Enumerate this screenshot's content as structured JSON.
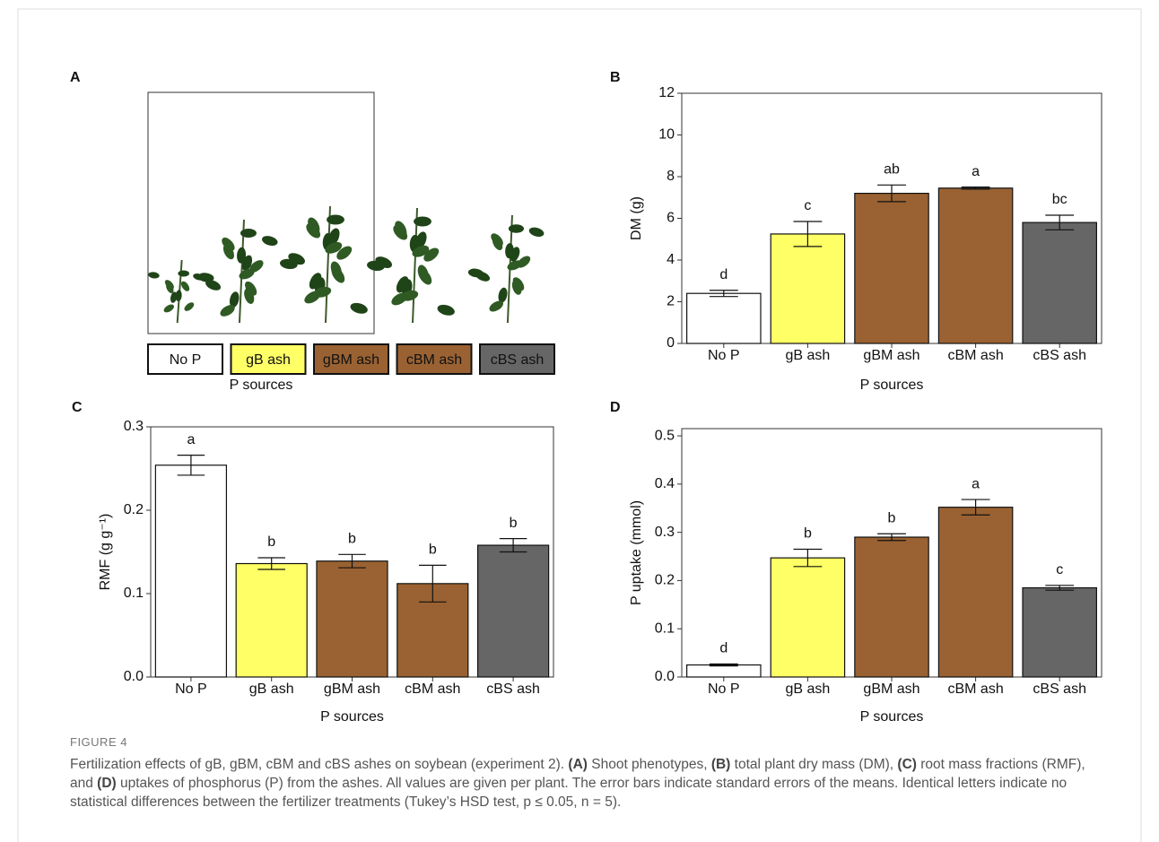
{
  "photo_panel": {
    "panel": "A",
    "labels": [
      "No P",
      "gB ash",
      "gBM ash",
      "cBM ash",
      "cBS  ash"
    ],
    "colors": [
      "#ffffff",
      "#ffff66",
      "#9a6232",
      "#9a6232",
      "#666666"
    ],
    "xlabel": "P sources"
  },
  "chart_data": [
    {
      "type": "bar",
      "panel": "B",
      "ylabel": "DM (g)",
      "xlabel": "P sources",
      "categories": [
        "No P",
        "gB ash",
        "gBM ash",
        "cBM ash",
        "cBS ash"
      ],
      "values": [
        2.4,
        5.25,
        7.2,
        7.45,
        5.8
      ],
      "errors": [
        0.15,
        0.6,
        0.4,
        0.05,
        0.35
      ],
      "annotations": [
        "d",
        "c",
        "ab",
        "a",
        "bc"
      ],
      "colors": [
        "#ffffff",
        "#ffff66",
        "#9a6232",
        "#9a6232",
        "#666666"
      ],
      "ylim": [
        0,
        12
      ],
      "yticks": [
        0,
        2,
        4,
        6,
        8,
        10,
        12
      ]
    },
    {
      "type": "bar",
      "panel": "C",
      "ylabel": "RMF (g g⁻¹)",
      "xlabel": "P sources",
      "categories": [
        "No P",
        "gB ash",
        "gBM ash",
        "cBM ash",
        "cBS ash"
      ],
      "values": [
        0.254,
        0.136,
        0.139,
        0.112,
        0.158
      ],
      "errors": [
        0.012,
        0.007,
        0.008,
        0.022,
        0.008
      ],
      "annotations": [
        "a",
        "b",
        "b",
        "b",
        "b"
      ],
      "colors": [
        "#ffffff",
        "#ffff66",
        "#9a6232",
        "#9a6232",
        "#666666"
      ],
      "ylim": [
        0,
        0.3
      ],
      "yticks": [
        {
          "value": 0,
          "label": "0.0"
        },
        0.1,
        0.2,
        0.3
      ]
    },
    {
      "type": "bar",
      "panel": "D",
      "ylabel": "P uptake (mmol)",
      "xlabel": "P sources",
      "categories": [
        "No P",
        "gB ash",
        "gBM ash",
        "cBM ash",
        "cBS ash"
      ],
      "values": [
        0.025,
        0.247,
        0.29,
        0.352,
        0.185
      ],
      "errors": [
        0.002,
        0.018,
        0.007,
        0.016,
        0.005
      ],
      "annotations": [
        "d",
        "b",
        "b",
        "a",
        "c"
      ],
      "colors": [
        "#ffffff",
        "#ffff66",
        "#9a6232",
        "#9a6232",
        "#666666"
      ],
      "ylim": [
        0,
        0.515
      ],
      "yticks": [
        {
          "value": 0,
          "label": "0.0"
        },
        0.1,
        0.2,
        0.3,
        0.4,
        0.5
      ]
    }
  ],
  "caption": {
    "label": "FIGURE 4",
    "runs": [
      {
        "text": "Fertilization effects of gB, gBM, cBM and cBS ashes on soybean (experiment 2). ",
        "bold": false
      },
      {
        "text": "(A)",
        "bold": true
      },
      {
        "text": " Shoot phenotypes, ",
        "bold": false
      },
      {
        "text": "(B)",
        "bold": true
      },
      {
        "text": " total plant dry mass (DM), ",
        "bold": false
      },
      {
        "text": "(C)",
        "bold": true
      },
      {
        "text": " root mass fractions (RMF), and ",
        "bold": false
      },
      {
        "text": "(D)",
        "bold": true
      },
      {
        "text": " uptakes of phosphorus (P) from the ashes. All values are given per plant. The error bars indicate standard errors of the means. Identical letters indicate no statistical differences between the fertilizer treatments (Tukey’s HSD test, p ≤ 0.05, n = 5).",
        "bold": false
      }
    ]
  }
}
